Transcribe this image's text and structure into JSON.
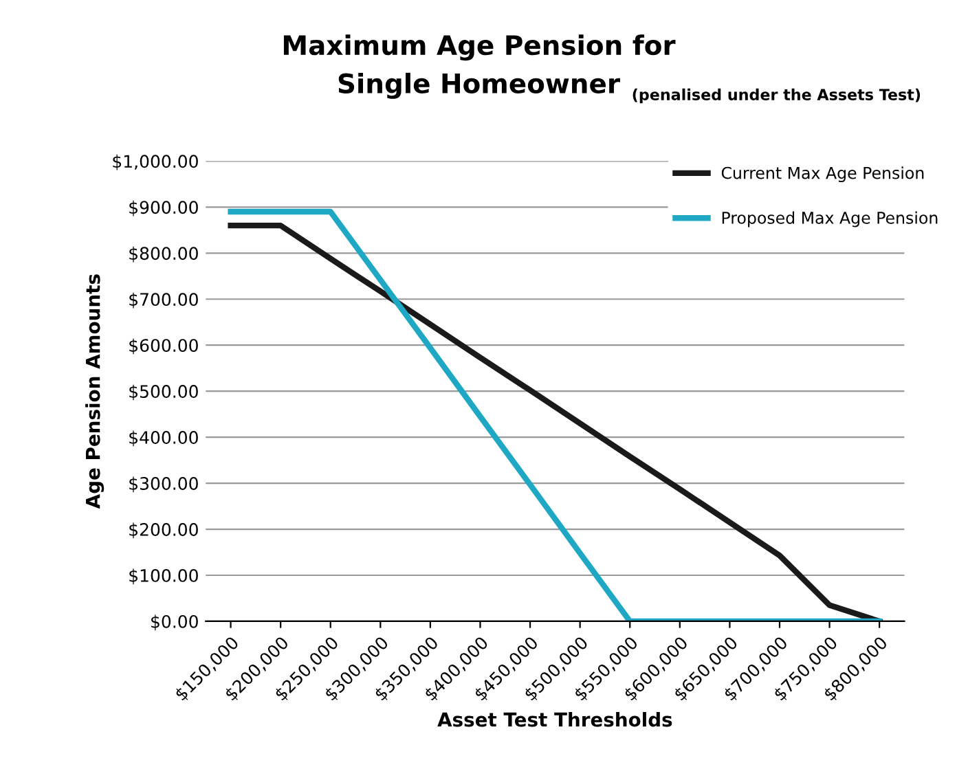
{
  "chart_data": {
    "type": "line",
    "title": "Maximum Age Pension for\nSingle Homeowner",
    "subtitle": "(penalised under the Assets Test)",
    "xlabel": "Asset Test Thresholds",
    "ylabel": "Age Pension Amounts",
    "categories": [
      "$150,000",
      "$200,000",
      "$250,000",
      "$300,000",
      "$350,000",
      "$400,000",
      "$450,000",
      "$500,000",
      "$550,000",
      "$600,000",
      "$650,000",
      "$700,000",
      "$750,000",
      "$800,000"
    ],
    "series": [
      {
        "name": "Current Max Age Pension",
        "color": "#1a1a1a",
        "values": [
          860,
          860,
          788,
          717,
          645,
          573,
          502,
          430,
          358,
          287,
          215,
          143,
          35,
          0
        ]
      },
      {
        "name": "Proposed Max Age Pension",
        "color": "#1fa8c4",
        "values": [
          890,
          890,
          890,
          742,
          594,
          445,
          297,
          148,
          0,
          0,
          0,
          0,
          0,
          0
        ]
      }
    ],
    "ylim": [
      0,
      1000
    ],
    "yticks": [
      {
        "value": 0,
        "label": "$0.00"
      },
      {
        "value": 100,
        "label": "$100.00"
      },
      {
        "value": 200,
        "label": "$200.00"
      },
      {
        "value": 300,
        "label": "$300.00"
      },
      {
        "value": 400,
        "label": "$400.00"
      },
      {
        "value": 500,
        "label": "$500.00"
      },
      {
        "value": 600,
        "label": "$600.00"
      },
      {
        "value": 700,
        "label": "$700.00"
      },
      {
        "value": 800,
        "label": "$800.00"
      },
      {
        "value": 900,
        "label": "$900.00"
      },
      {
        "value": 1000,
        "label": "$1,000.00"
      }
    ],
    "grid": "y",
    "legend": "top right",
    "marker": "none",
    "line_style": "solid"
  }
}
